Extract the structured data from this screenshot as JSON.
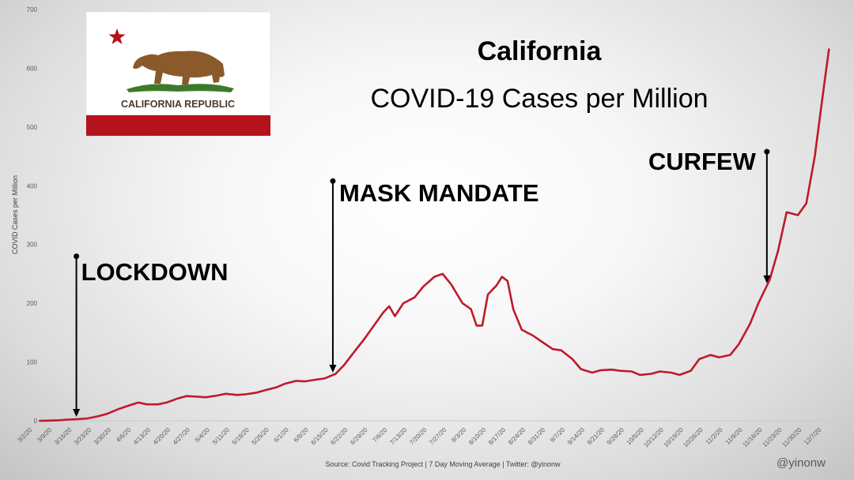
{
  "chart_data": {
    "type": "line",
    "title": "California",
    "subtitle": "COVID-19 Cases per Million",
    "ylabel": "COVID Cases per Million",
    "xlabel": "",
    "ylim": [
      0,
      700
    ],
    "yticks": [
      0,
      100,
      200,
      300,
      400,
      500,
      600,
      700
    ],
    "xtick_labels": [
      "3/2/20",
      "3/9/20",
      "3/16/20",
      "3/23/20",
      "3/30/20",
      "4/6/20",
      "4/13/20",
      "4/20/20",
      "4/27/20",
      "5/4/20",
      "5/11/20",
      "5/18/20",
      "5/25/20",
      "6/1/20",
      "6/8/20",
      "6/15/20",
      "6/22/20",
      "6/29/20",
      "7/6/20",
      "7/13/20",
      "7/20/20",
      "7/27/20",
      "8/3/20",
      "8/10/20",
      "8/17/20",
      "8/24/20",
      "8/31/20",
      "9/7/20",
      "9/14/20",
      "9/21/20",
      "9/28/20",
      "10/5/20",
      "10/12/20",
      "10/19/20",
      "10/26/20",
      "11/2/20",
      "11/9/20",
      "11/16/20",
      "11/23/20",
      "11/30/20",
      "12/7/20"
    ],
    "series": [
      {
        "values": [
          [
            "3/6/20",
            0
          ],
          [
            "3/9/20",
            0.3
          ],
          [
            "3/13/20",
            1
          ],
          [
            "3/16/20",
            2
          ],
          [
            "3/20/20",
            3
          ],
          [
            "3/23/20",
            4
          ],
          [
            "3/27/20",
            8
          ],
          [
            "3/30/20",
            12
          ],
          [
            "4/3/20",
            20
          ],
          [
            "4/6/20",
            25
          ],
          [
            "4/10/20",
            31
          ],
          [
            "4/13/20",
            28
          ],
          [
            "4/17/20",
            28
          ],
          [
            "4/20/20",
            31
          ],
          [
            "4/24/20",
            38
          ],
          [
            "4/27/20",
            42
          ],
          [
            "5/1/20",
            41
          ],
          [
            "5/4/20",
            40
          ],
          [
            "5/8/20",
            43
          ],
          [
            "5/11/20",
            46
          ],
          [
            "5/15/20",
            44
          ],
          [
            "5/18/20",
            45
          ],
          [
            "5/22/20",
            48
          ],
          [
            "5/25/20",
            52
          ],
          [
            "5/29/20",
            57
          ],
          [
            "6/1/20",
            63
          ],
          [
            "6/5/20",
            68
          ],
          [
            "6/8/20",
            67
          ],
          [
            "6/12/20",
            70
          ],
          [
            "6/15/20",
            72
          ],
          [
            "6/19/20",
            80
          ],
          [
            "6/22/20",
            95
          ],
          [
            "6/26/20",
            120
          ],
          [
            "6/29/20",
            138
          ],
          [
            "7/3/20",
            165
          ],
          [
            "7/6/20",
            185
          ],
          [
            "7/8/20",
            195
          ],
          [
            "7/10/20",
            178
          ],
          [
            "7/13/20",
            200
          ],
          [
            "7/17/20",
            210
          ],
          [
            "7/20/20",
            228
          ],
          [
            "7/24/20",
            245
          ],
          [
            "7/27/20",
            250
          ],
          [
            "7/30/20",
            232
          ],
          [
            "8/3/20",
            200
          ],
          [
            "8/6/20",
            190
          ],
          [
            "8/8/20",
            162
          ],
          [
            "8/10/20",
            162
          ],
          [
            "8/12/20",
            215
          ],
          [
            "8/15/20",
            230
          ],
          [
            "8/17/20",
            245
          ],
          [
            "8/19/20",
            238
          ],
          [
            "8/21/20",
            190
          ],
          [
            "8/24/20",
            155
          ],
          [
            "8/28/20",
            145
          ],
          [
            "8/31/20",
            135
          ],
          [
            "9/4/20",
            122
          ],
          [
            "9/7/20",
            120
          ],
          [
            "9/11/20",
            105
          ],
          [
            "9/14/20",
            88
          ],
          [
            "9/18/20",
            82
          ],
          [
            "9/21/20",
            86
          ],
          [
            "9/25/20",
            87
          ],
          [
            "9/28/20",
            85
          ],
          [
            "10/2/20",
            84
          ],
          [
            "10/5/20",
            78
          ],
          [
            "10/9/20",
            80
          ],
          [
            "10/12/20",
            84
          ],
          [
            "10/16/20",
            82
          ],
          [
            "10/19/20",
            78
          ],
          [
            "10/23/20",
            85
          ],
          [
            "10/26/20",
            105
          ],
          [
            "10/30/20",
            112
          ],
          [
            "11/2/20",
            108
          ],
          [
            "11/6/20",
            112
          ],
          [
            "11/9/20",
            130
          ],
          [
            "11/13/20",
            165
          ],
          [
            "11/16/20",
            200
          ],
          [
            "11/20/20",
            240
          ],
          [
            "11/23/20",
            290
          ],
          [
            "11/26/20",
            355
          ],
          [
            "11/30/20",
            350
          ],
          [
            "12/3/20",
            370
          ],
          [
            "12/6/20",
            450
          ],
          [
            "12/9/20",
            560
          ],
          [
            "12/11/20",
            632
          ]
        ]
      }
    ],
    "annotations": [
      {
        "label": "LOCKDOWN",
        "date": "3/19/20"
      },
      {
        "label": "MASK MANDATE",
        "date": "6/18/20"
      },
      {
        "label": "CURFEW",
        "date": "11/19/20"
      }
    ],
    "source": "Source: Covid Tracking Project | 7 Day Moving Average | Twitter: @yinonw",
    "handle": "@yinonw",
    "line_color": "#c0192c",
    "grid": false
  },
  "flag": {
    "text": "CALIFORNIA REPUBLIC",
    "star_color": "#b5121b",
    "stripe_color": "#b5121b",
    "bear_color": "#8b5a2b"
  }
}
